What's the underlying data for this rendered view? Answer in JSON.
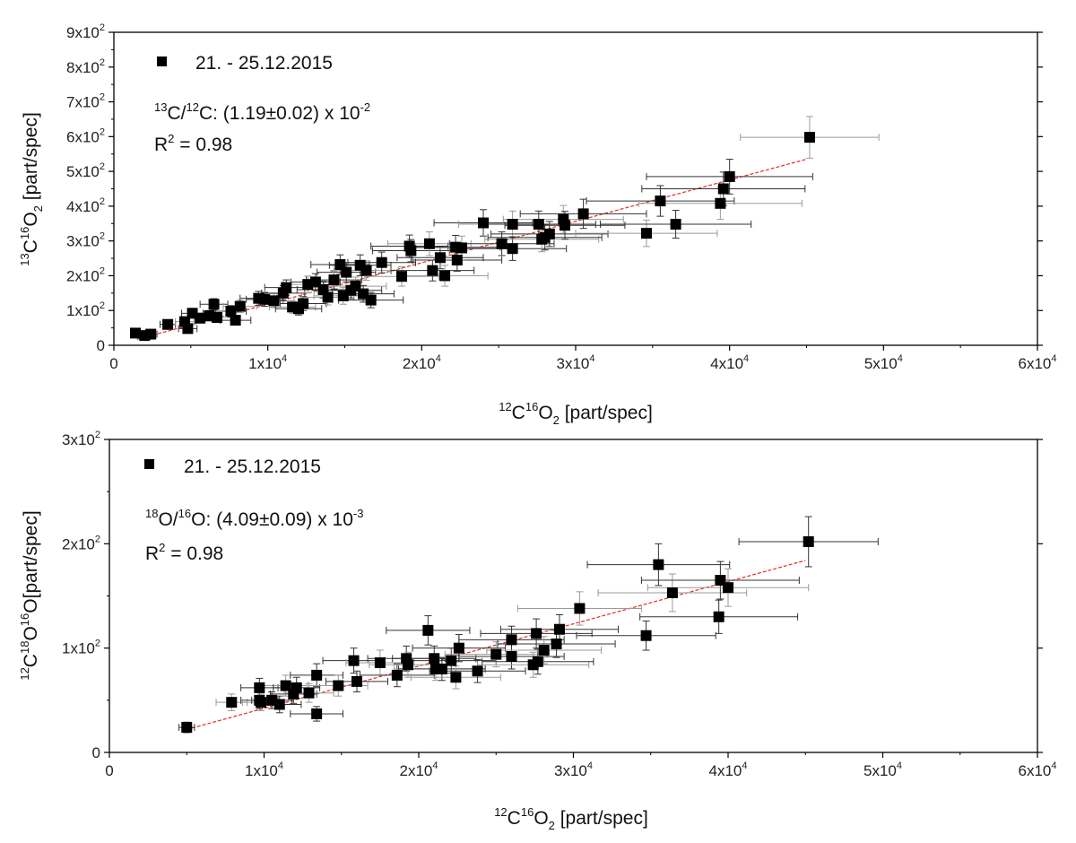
{
  "chart_data": [
    {
      "type": "scatter",
      "title": "",
      "xlabel": {
        "iso": "12",
        "el1": "C",
        "iso2": "16",
        "el2": "O",
        "n": "2",
        "unit": " [part/spec]"
      },
      "ylabel": {
        "iso": "13",
        "el1": "C",
        "iso2": "16",
        "el2": "O",
        "n": "2",
        "unit": " [part/spec]"
      },
      "xlim": [
        0,
        60000
      ],
      "ylim": [
        0,
        900
      ],
      "x_ticks": [
        {
          "v": 0,
          "m": "0",
          "e": ""
        },
        {
          "v": 10000,
          "m": "1x10",
          "e": "4"
        },
        {
          "v": 20000,
          "m": "2x10",
          "e": "4"
        },
        {
          "v": 30000,
          "m": "3x10",
          "e": "4"
        },
        {
          "v": 40000,
          "m": "4x10",
          "e": "4"
        },
        {
          "v": 50000,
          "m": "5x10",
          "e": "4"
        },
        {
          "v": 60000,
          "m": "6x10",
          "e": "4"
        }
      ],
      "y_ticks": [
        {
          "v": 0,
          "m": "0",
          "e": ""
        },
        {
          "v": 100,
          "m": "1x10",
          "e": "2"
        },
        {
          "v": 200,
          "m": "2x10",
          "e": "2"
        },
        {
          "v": 300,
          "m": "3x10",
          "e": "2"
        },
        {
          "v": 400,
          "m": "4x10",
          "e": "2"
        },
        {
          "v": 500,
          "m": "5x10",
          "e": "2"
        },
        {
          "v": 600,
          "m": "6x10",
          "e": "2"
        },
        {
          "v": 700,
          "m": "7x10",
          "e": "2"
        },
        {
          "v": 800,
          "m": "8x10",
          "e": "2"
        },
        {
          "v": 900,
          "m": "9x10",
          "e": "2"
        }
      ],
      "legend": {
        "label": "21. - 25.12.2015",
        "position": "top-left"
      },
      "annotation": {
        "ratio_iso1": "13",
        "ratio_el1": "C/",
        "ratio_iso2": "12",
        "ratio_el2": "C: (1.19±0.02) x 10",
        "ratio_exp": "-2",
        "r2_label": "R",
        "r2_exp": "2",
        "r2_value": " = 0.98"
      },
      "fit": {
        "x": [
          1500,
          45000
        ],
        "y": [
          17,
          535
        ],
        "color": "#e0301e"
      },
      "series": [
        {
          "name": "21. - 25.12.2015",
          "points": [
            {
              "x": 1400,
              "y": 35,
              "xe": 300,
              "ye": 8
            },
            {
              "x": 2000,
              "y": 28,
              "xe": 400,
              "ye": 8
            },
            {
              "x": 2400,
              "y": 32,
              "xe": 400,
              "ye": 8
            },
            {
              "x": 3500,
              "y": 60,
              "xe": 500,
              "ye": 10
            },
            {
              "x": 4600,
              "y": 68,
              "xe": 600,
              "ye": 12
            },
            {
              "x": 4800,
              "y": 48,
              "xe": 600,
              "ye": 12
            },
            {
              "x": 5100,
              "y": 92,
              "xe": 700,
              "ye": 14
            },
            {
              "x": 5600,
              "y": 78,
              "xe": 800,
              "ye": 14
            },
            {
              "x": 6200,
              "y": 85,
              "xe": 800,
              "ye": 15
            },
            {
              "x": 6500,
              "y": 118,
              "xe": 900,
              "ye": 16
            },
            {
              "x": 6700,
              "y": 80,
              "xe": 900,
              "ye": 14
            },
            {
              "x": 7600,
              "y": 98,
              "xe": 1000,
              "ye": 16
            },
            {
              "x": 7900,
              "y": 72,
              "xe": 1000,
              "ye": 14
            },
            {
              "x": 8200,
              "y": 112,
              "xe": 1100,
              "ye": 18
            },
            {
              "x": 9400,
              "y": 135,
              "xe": 1200,
              "ye": 20
            },
            {
              "x": 9800,
              "y": 132,
              "xe": 1200,
              "ye": 20
            },
            {
              "x": 10400,
              "y": 128,
              "xe": 1300,
              "ye": 20
            },
            {
              "x": 11000,
              "y": 150,
              "xe": 1400,
              "ye": 22
            },
            {
              "x": 11200,
              "y": 166,
              "xe": 1400,
              "ye": 22
            },
            {
              "x": 11600,
              "y": 110,
              "xe": 1500,
              "ye": 18
            },
            {
              "x": 12000,
              "y": 105,
              "xe": 1500,
              "ye": 18
            },
            {
              "x": 12300,
              "y": 120,
              "xe": 1500,
              "ye": 20
            },
            {
              "x": 12600,
              "y": 175,
              "xe": 1600,
              "ye": 24
            },
            {
              "x": 13100,
              "y": 182,
              "xe": 1600,
              "ye": 24
            },
            {
              "x": 13600,
              "y": 160,
              "xe": 1700,
              "ye": 24
            },
            {
              "x": 13900,
              "y": 138,
              "xe": 1700,
              "ye": 22
            },
            {
              "x": 14300,
              "y": 188,
              "xe": 1800,
              "ye": 26
            },
            {
              "x": 14700,
              "y": 232,
              "xe": 1900,
              "ye": 28
            },
            {
              "x": 14900,
              "y": 142,
              "xe": 1900,
              "ye": 24
            },
            {
              "x": 15100,
              "y": 210,
              "xe": 1900,
              "ye": 28
            },
            {
              "x": 15400,
              "y": 158,
              "xe": 2000,
              "ye": 24
            },
            {
              "x": 15700,
              "y": 170,
              "xe": 2000,
              "ye": 26
            },
            {
              "x": 16000,
              "y": 230,
              "xe": 2000,
              "ye": 30
            },
            {
              "x": 16200,
              "y": 148,
              "xe": 2000,
              "ye": 24
            },
            {
              "x": 16400,
              "y": 215,
              "xe": 2100,
              "ye": 28
            },
            {
              "x": 16700,
              "y": 130,
              "xe": 2100,
              "ye": 22
            },
            {
              "x": 17400,
              "y": 238,
              "xe": 2200,
              "ye": 30
            },
            {
              "x": 18700,
              "y": 198,
              "xe": 2400,
              "ye": 28
            },
            {
              "x": 19200,
              "y": 285,
              "xe": 2500,
              "ye": 32
            },
            {
              "x": 19300,
              "y": 272,
              "xe": 2500,
              "ye": 32
            },
            {
              "x": 20500,
              "y": 292,
              "xe": 2700,
              "ye": 34
            },
            {
              "x": 20700,
              "y": 215,
              "xe": 2700,
              "ye": 30
            },
            {
              "x": 21200,
              "y": 252,
              "xe": 2800,
              "ye": 32
            },
            {
              "x": 21500,
              "y": 200,
              "xe": 2800,
              "ye": 30
            },
            {
              "x": 22200,
              "y": 282,
              "xe": 2900,
              "ye": 34
            },
            {
              "x": 22300,
              "y": 245,
              "xe": 2900,
              "ye": 32
            },
            {
              "x": 22600,
              "y": 280,
              "xe": 3000,
              "ye": 34
            },
            {
              "x": 24000,
              "y": 352,
              "xe": 3200,
              "ye": 38
            },
            {
              "x": 25200,
              "y": 292,
              "xe": 3400,
              "ye": 34
            },
            {
              "x": 25900,
              "y": 348,
              "xe": 3500,
              "ye": 38
            },
            {
              "x": 25900,
              "y": 278,
              "xe": 3500,
              "ye": 34
            },
            {
              "x": 27600,
              "y": 348,
              "xe": 3700,
              "ye": 38
            },
            {
              "x": 27800,
              "y": 305,
              "xe": 3700,
              "ye": 36
            },
            {
              "x": 28000,
              "y": 310,
              "xe": 3700,
              "ye": 36
            },
            {
              "x": 28300,
              "y": 320,
              "xe": 3800,
              "ye": 36
            },
            {
              "x": 29200,
              "y": 362,
              "xe": 3900,
              "ye": 40
            },
            {
              "x": 29300,
              "y": 345,
              "xe": 3900,
              "ye": 40
            },
            {
              "x": 30500,
              "y": 378,
              "xe": 4100,
              "ye": 42
            },
            {
              "x": 34600,
              "y": 322,
              "xe": 4600,
              "ye": 38
            },
            {
              "x": 35500,
              "y": 415,
              "xe": 4800,
              "ye": 44
            },
            {
              "x": 36500,
              "y": 348,
              "xe": 4900,
              "ye": 40
            },
            {
              "x": 39400,
              "y": 408,
              "xe": 5300,
              "ye": 46
            },
            {
              "x": 39600,
              "y": 450,
              "xe": 5300,
              "ye": 48
            },
            {
              "x": 40000,
              "y": 485,
              "xe": 5400,
              "ye": 50
            },
            {
              "x": 45200,
              "y": 598,
              "xe": 4500,
              "ye": 60
            }
          ]
        }
      ]
    },
    {
      "type": "scatter",
      "title": "",
      "xlabel": {
        "iso": "12",
        "el1": "C",
        "iso2": "16",
        "el2": "O",
        "n": "2",
        "unit": " [part/spec]"
      },
      "ylabel": {
        "iso": "12",
        "el1": "C",
        "iso2": "18",
        "el2": "O",
        "iso3": "16",
        "el3": "O",
        "unit": "[part/spec]"
      },
      "xlim": [
        0,
        60000
      ],
      "ylim": [
        0,
        300
      ],
      "x_ticks": [
        {
          "v": 0,
          "m": "0",
          "e": ""
        },
        {
          "v": 10000,
          "m": "1x10",
          "e": "4"
        },
        {
          "v": 20000,
          "m": "2x10",
          "e": "4"
        },
        {
          "v": 30000,
          "m": "3x10",
          "e": "4"
        },
        {
          "v": 40000,
          "m": "4x10",
          "e": "4"
        },
        {
          "v": 50000,
          "m": "5x10",
          "e": "4"
        },
        {
          "v": 60000,
          "m": "6x10",
          "e": "4"
        }
      ],
      "y_ticks": [
        {
          "v": 0,
          "m": "0",
          "e": ""
        },
        {
          "v": 100,
          "m": "1x10",
          "e": "2"
        },
        {
          "v": 200,
          "m": "2x10",
          "e": "2"
        },
        {
          "v": 300,
          "m": "3x10",
          "e": "2"
        }
      ],
      "legend": {
        "label": "21. - 25.12.2015",
        "position": "top-left"
      },
      "annotation": {
        "ratio_iso1": "18",
        "ratio_el1": "O/",
        "ratio_iso2": "16",
        "ratio_el2": "O: (4.09±0.09) x 10",
        "ratio_exp": "-3",
        "r2_label": "R",
        "r2_exp": "2",
        "r2_value": " = 0.98"
      },
      "fit": {
        "x": [
          5000,
          45000
        ],
        "y": [
          22,
          184
        ],
        "color": "#e0301e"
      },
      "series": [
        {
          "name": "21. - 25.12.2015",
          "points": [
            {
              "x": 5000,
              "y": 24,
              "xe": 500,
              "ye": 5
            },
            {
              "x": 7900,
              "y": 48,
              "xe": 1000,
              "ye": 8
            },
            {
              "x": 9700,
              "y": 62,
              "xe": 1200,
              "ye": 9
            },
            {
              "x": 9700,
              "y": 50,
              "xe": 1200,
              "ye": 8
            },
            {
              "x": 9800,
              "y": 48,
              "xe": 1200,
              "ye": 8
            },
            {
              "x": 10500,
              "y": 50,
              "xe": 1300,
              "ye": 8
            },
            {
              "x": 11000,
              "y": 46,
              "xe": 1400,
              "ye": 8
            },
            {
              "x": 11400,
              "y": 64,
              "xe": 1400,
              "ye": 10
            },
            {
              "x": 11900,
              "y": 56,
              "xe": 1500,
              "ye": 9
            },
            {
              "x": 12100,
              "y": 62,
              "xe": 1500,
              "ye": 10
            },
            {
              "x": 12900,
              "y": 57,
              "xe": 1600,
              "ye": 9
            },
            {
              "x": 13400,
              "y": 74,
              "xe": 1700,
              "ye": 11
            },
            {
              "x": 13400,
              "y": 37,
              "xe": 1700,
              "ye": 7
            },
            {
              "x": 14800,
              "y": 64,
              "xe": 1900,
              "ye": 10
            },
            {
              "x": 15800,
              "y": 88,
              "xe": 2000,
              "ye": 12
            },
            {
              "x": 16000,
              "y": 68,
              "xe": 2000,
              "ye": 10
            },
            {
              "x": 17500,
              "y": 86,
              "xe": 2200,
              "ye": 12
            },
            {
              "x": 18600,
              "y": 74,
              "xe": 2400,
              "ye": 11
            },
            {
              "x": 19200,
              "y": 90,
              "xe": 2500,
              "ye": 12
            },
            {
              "x": 19300,
              "y": 84,
              "xe": 2500,
              "ye": 12
            },
            {
              "x": 20600,
              "y": 117,
              "xe": 2700,
              "ye": 14
            },
            {
              "x": 21000,
              "y": 90,
              "xe": 2700,
              "ye": 12
            },
            {
              "x": 21100,
              "y": 80,
              "xe": 2700,
              "ye": 11
            },
            {
              "x": 21500,
              "y": 80,
              "xe": 2800,
              "ye": 11
            },
            {
              "x": 22100,
              "y": 88,
              "xe": 2900,
              "ye": 12
            },
            {
              "x": 22400,
              "y": 72,
              "xe": 2900,
              "ye": 11
            },
            {
              "x": 22600,
              "y": 100,
              "xe": 3000,
              "ye": 13
            },
            {
              "x": 23800,
              "y": 78,
              "xe": 3100,
              "ye": 11
            },
            {
              "x": 25000,
              "y": 94,
              "xe": 3300,
              "ye": 12
            },
            {
              "x": 26000,
              "y": 108,
              "xe": 3400,
              "ye": 13
            },
            {
              "x": 26000,
              "y": 92,
              "xe": 3400,
              "ye": 12
            },
            {
              "x": 27400,
              "y": 84,
              "xe": 3600,
              "ye": 12
            },
            {
              "x": 27600,
              "y": 114,
              "xe": 3600,
              "ye": 14
            },
            {
              "x": 27700,
              "y": 87,
              "xe": 3600,
              "ye": 12
            },
            {
              "x": 28100,
              "y": 98,
              "xe": 3700,
              "ye": 13
            },
            {
              "x": 28900,
              "y": 104,
              "xe": 3800,
              "ye": 13
            },
            {
              "x": 29100,
              "y": 118,
              "xe": 3800,
              "ye": 14
            },
            {
              "x": 30400,
              "y": 138,
              "xe": 4000,
              "ye": 16
            },
            {
              "x": 34700,
              "y": 112,
              "xe": 4500,
              "ye": 14
            },
            {
              "x": 35500,
              "y": 180,
              "xe": 4600,
              "ye": 20
            },
            {
              "x": 36400,
              "y": 153,
              "xe": 4800,
              "ye": 18
            },
            {
              "x": 39400,
              "y": 130,
              "xe": 5100,
              "ye": 16
            },
            {
              "x": 39500,
              "y": 165,
              "xe": 5100,
              "ye": 18
            },
            {
              "x": 40000,
              "y": 158,
              "xe": 5200,
              "ye": 18
            },
            {
              "x": 45200,
              "y": 202,
              "xe": 4500,
              "ye": 24
            }
          ]
        }
      ]
    }
  ]
}
